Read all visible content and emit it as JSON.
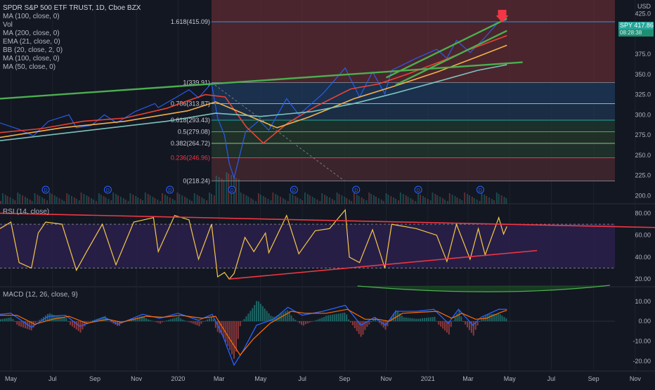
{
  "header": {
    "symbol_line": "SPDR S&P 500 ETF TRUST, 1D, Cboe BZX",
    "indicators": [
      "MA (100, close, 0)",
      "Vol",
      "MA (200, close, 0)",
      "EMA (21, close, 0)",
      "BB (20, close, 2, 0)",
      "MA (100, close, 0)",
      "MA (50, close, 0)"
    ],
    "currency": "USD"
  },
  "price_tag": {
    "symbol": "SPY",
    "value": "417.86",
    "countdown": "08:28:38"
  },
  "rsi_title": "RSI (14, close)",
  "macd_title": "MACD (12, 26, close, 9)",
  "colors": {
    "background": "#131722",
    "price_line": "#2962ff",
    "trendline_green": "#4caf50",
    "trendline_rsi": "#f23645",
    "rsi_line": "#f7c948",
    "macd_line": "#2962ff",
    "signal_line": "#ff6d00",
    "ma50": "#f44336",
    "ma100": "#ffb74d",
    "ma200": "#80cbc4",
    "fib_red": "#5d2b31",
    "fib_blue": "#1d3a5c",
    "fib_green": "#1f3a2d",
    "arrow": "#f23645"
  },
  "chart_data": [
    {
      "type": "line",
      "pane": "price",
      "title": "",
      "x_range": [
        "2019-04-15",
        "2021-11-30"
      ],
      "ylim": [
        190,
        442
      ],
      "y_ticks": [
        200,
        225,
        250,
        275,
        300,
        325,
        350,
        375,
        400,
        425
      ],
      "x_ticks": [
        {
          "label": "May",
          "date": "2019-05-01"
        },
        {
          "label": "Jul",
          "date": "2019-07-01"
        },
        {
          "label": "Sep",
          "date": "2019-09-01"
        },
        {
          "label": "Nov",
          "date": "2019-11-01"
        },
        {
          "label": "2020",
          "date": "2020-01-01"
        },
        {
          "label": "Mar",
          "date": "2020-03-01"
        },
        {
          "label": "May",
          "date": "2020-05-01"
        },
        {
          "label": "Jul",
          "date": "2020-07-01"
        },
        {
          "label": "Sep",
          "date": "2020-09-01"
        },
        {
          "label": "Nov",
          "date": "2020-11-01"
        },
        {
          "label": "2021",
          "date": "2021-01-01"
        },
        {
          "label": "Mar",
          "date": "2021-03-01"
        },
        {
          "label": "May",
          "date": "2021-05-01"
        },
        {
          "label": "Jul",
          "date": "2021-07-01"
        },
        {
          "label": "Sep",
          "date": "2021-09-01"
        },
        {
          "label": "Nov",
          "date": "2021-11-01"
        }
      ],
      "series": [
        {
          "key": "price",
          "points": [
            [
              "2019-04-15",
              290
            ],
            [
              "2019-05-13",
              282
            ],
            [
              "2019-06-03",
              274
            ],
            [
              "2019-06-25",
              292
            ],
            [
              "2019-07-25",
              300
            ],
            [
              "2019-08-05",
              284
            ],
            [
              "2019-08-27",
              287
            ],
            [
              "2019-09-15",
              300
            ],
            [
              "2019-10-03",
              290
            ],
            [
              "2019-10-30",
              304
            ],
            [
              "2019-11-28",
              314
            ],
            [
              "2019-12-03",
              309
            ],
            [
              "2019-12-30",
              322
            ],
            [
              "2020-01-17",
              331
            ],
            [
              "2020-01-31",
              321
            ],
            [
              "2020-02-19",
              339
            ],
            [
              "2020-02-28",
              296
            ],
            [
              "2020-03-09",
              275
            ],
            [
              "2020-03-16",
              240
            ],
            [
              "2020-03-23",
              222
            ],
            [
              "2020-04-09",
              279
            ],
            [
              "2020-04-29",
              293
            ],
            [
              "2020-05-13",
              281
            ],
            [
              "2020-06-08",
              320
            ],
            [
              "2020-06-26",
              300
            ],
            [
              "2020-07-31",
              326
            ],
            [
              "2020-09-02",
              358
            ],
            [
              "2020-09-23",
              322
            ],
            [
              "2020-10-12",
              353
            ],
            [
              "2020-10-30",
              326
            ],
            [
              "2020-11-09",
              355
            ],
            [
              "2020-12-15",
              370
            ],
            [
              "2021-01-14",
              381
            ],
            [
              "2021-01-29",
              370
            ],
            [
              "2021-02-12",
              392
            ],
            [
              "2021-03-04",
              377
            ],
            [
              "2021-03-26",
              396
            ],
            [
              "2021-04-15",
              415
            ],
            [
              "2021-04-26",
              417
            ]
          ]
        },
        {
          "key": "ma50",
          "points": [
            [
              "2019-04-15",
              278
            ],
            [
              "2019-06-15",
              283
            ],
            [
              "2019-08-15",
              292
            ],
            [
              "2019-10-15",
              296
            ],
            [
              "2019-12-15",
              308
            ],
            [
              "2020-02-10",
              325
            ],
            [
              "2020-03-10",
              322
            ],
            [
              "2020-04-10",
              285
            ],
            [
              "2020-05-05",
              265
            ],
            [
              "2020-06-10",
              290
            ],
            [
              "2020-07-20",
              310
            ],
            [
              "2020-09-10",
              332
            ],
            [
              "2020-10-20",
              338
            ],
            [
              "2020-12-01",
              350
            ],
            [
              "2021-01-20",
              366
            ],
            [
              "2021-03-01",
              380
            ],
            [
              "2021-04-27",
              398
            ]
          ]
        },
        {
          "key": "ma100",
          "points": [
            [
              "2019-04-15",
              272
            ],
            [
              "2019-07-15",
              284
            ],
            [
              "2019-10-15",
              292
            ],
            [
              "2020-01-15",
              305
            ],
            [
              "2020-02-25",
              316
            ],
            [
              "2020-04-10",
              300
            ],
            [
              "2020-05-25",
              284
            ],
            [
              "2020-07-10",
              297
            ],
            [
              "2020-09-15",
              320
            ],
            [
              "2020-11-15",
              336
            ],
            [
              "2021-01-15",
              353
            ],
            [
              "2021-03-15",
              372
            ],
            [
              "2021-04-27",
              386
            ]
          ]
        },
        {
          "key": "ma200",
          "points": [
            [
              "2019-04-15",
              268
            ],
            [
              "2019-08-15",
              280
            ],
            [
              "2019-12-15",
              292
            ],
            [
              "2020-02-25",
              302
            ],
            [
              "2020-05-01",
              298
            ],
            [
              "2020-07-15",
              304
            ],
            [
              "2020-09-15",
              314
            ],
            [
              "2020-11-15",
              327
            ],
            [
              "2021-01-15",
              341
            ],
            [
              "2021-03-15",
              355
            ],
            [
              "2021-04-27",
              362
            ]
          ]
        }
      ],
      "fib_levels": [
        {
          "label": "1.618(415.09)",
          "ratio": 1.618,
          "value": 415.09
        },
        {
          "label": "1(339.91)",
          "ratio": 1,
          "value": 339.91
        },
        {
          "label": "0.786(313.87)",
          "ratio": 0.786,
          "value": 313.87
        },
        {
          "label": "0.618(293.43)",
          "ratio": 0.618,
          "value": 293.43
        },
        {
          "label": "0.5(279.08)",
          "ratio": 0.5,
          "value": 279.08
        },
        {
          "label": "0.382(264.72)",
          "ratio": 0.382,
          "value": 264.72
        },
        {
          "label": "0.236(246.96)",
          "ratio": 0.236,
          "value": 246.96
        },
        {
          "label": "0(218.24)",
          "ratio": 0,
          "value": 218.24
        }
      ],
      "fib_start_date": "2020-02-19",
      "trendlines": [
        {
          "color": "green",
          "from": [
            "2019-04-15",
            320
          ],
          "to": [
            "2021-05-20",
            365
          ]
        },
        {
          "color": "green",
          "from": [
            "2020-11-01",
            346
          ],
          "to": [
            "2021-04-27",
            419
          ]
        },
        {
          "color": "green",
          "from": [
            "2020-11-15",
            337
          ],
          "to": [
            "2021-04-27",
            404
          ]
        }
      ],
      "dividend_marks": [
        "2019-03-22",
        "2019-06-21",
        "2019-09-20",
        "2019-12-20",
        "2020-03-20",
        "2020-06-19",
        "2020-09-18",
        "2020-12-18",
        "2021-03-19"
      ],
      "dividend_symbol": "D"
    },
    {
      "type": "line",
      "pane": "rsi",
      "title": "RSI (14, close)",
      "ylim": [
        13,
        88
      ],
      "y_ticks": [
        20.0,
        40.0,
        60.0,
        80.0
      ],
      "bands": [
        30,
        70
      ],
      "points": [
        [
          "2019-04-15",
          66
        ],
        [
          "2019-05-01",
          72
        ],
        [
          "2019-05-13",
          35
        ],
        [
          "2019-05-31",
          30
        ],
        [
          "2019-06-10",
          62
        ],
        [
          "2019-06-21",
          72
        ],
        [
          "2019-07-15",
          70
        ],
        [
          "2019-08-05",
          28
        ],
        [
          "2019-08-20",
          45
        ],
        [
          "2019-09-12",
          70
        ],
        [
          "2019-10-02",
          33
        ],
        [
          "2019-10-28",
          72
        ],
        [
          "2019-11-26",
          76
        ],
        [
          "2019-12-03",
          45
        ],
        [
          "2019-12-27",
          78
        ],
        [
          "2020-01-17",
          74
        ],
        [
          "2020-01-31",
          38
        ],
        [
          "2020-02-19",
          70
        ],
        [
          "2020-02-28",
          22
        ],
        [
          "2020-03-09",
          26
        ],
        [
          "2020-03-16",
          20
        ],
        [
          "2020-03-23",
          25
        ],
        [
          "2020-04-08",
          58
        ],
        [
          "2020-04-21",
          45
        ],
        [
          "2020-05-08",
          62
        ],
        [
          "2020-05-13",
          44
        ],
        [
          "2020-06-08",
          78
        ],
        [
          "2020-06-26",
          43
        ],
        [
          "2020-07-20",
          64
        ],
        [
          "2020-08-10",
          66
        ],
        [
          "2020-09-02",
          83
        ],
        [
          "2020-09-08",
          40
        ],
        [
          "2020-09-23",
          35
        ],
        [
          "2020-10-12",
          65
        ],
        [
          "2020-10-30",
          30
        ],
        [
          "2020-11-09",
          70
        ],
        [
          "2020-12-15",
          66
        ],
        [
          "2021-01-14",
          60
        ],
        [
          "2021-01-29",
          36
        ],
        [
          "2021-02-12",
          70
        ],
        [
          "2021-03-04",
          38
        ],
        [
          "2021-03-16",
          66
        ],
        [
          "2021-03-26",
          42
        ],
        [
          "2021-04-15",
          76
        ],
        [
          "2021-04-22",
          61
        ],
        [
          "2021-04-27",
          68
        ]
      ],
      "trendlines": [
        {
          "from": [
            "2019-04-15",
            80
          ],
          "to": [
            "2021-11-30",
            67
          ]
        },
        {
          "from": [
            "2020-03-16",
            20
          ],
          "to": [
            "2021-06-10",
            46
          ]
        }
      ]
    },
    {
      "type": "line",
      "pane": "macd",
      "title": "MACD (12, 26, close, 9)",
      "ylim": [
        -25,
        17
      ],
      "y_ticks": [
        10.0,
        0.0,
        -10.0,
        -20.0
      ],
      "series": [
        {
          "key": "macd",
          "points": [
            [
              "2019-04-15",
              3.5
            ],
            [
              "2019-05-01",
              4
            ],
            [
              "2019-05-31",
              -3
            ],
            [
              "2019-06-25",
              2.5
            ],
            [
              "2019-07-20",
              3
            ],
            [
              "2019-08-10",
              -2.5
            ],
            [
              "2019-09-15",
              2
            ],
            [
              "2019-10-05",
              -1.5
            ],
            [
              "2019-11-10",
              3.5
            ],
            [
              "2019-12-05",
              1.5
            ],
            [
              "2020-01-01",
              4
            ],
            [
              "2020-01-31",
              0.5
            ],
            [
              "2020-02-20",
              3.5
            ],
            [
              "2020-03-05",
              -6
            ],
            [
              "2020-03-23",
              -22
            ],
            [
              "2020-04-05",
              -15
            ],
            [
              "2020-04-25",
              -2
            ],
            [
              "2020-05-20",
              1
            ],
            [
              "2020-06-10",
              7
            ],
            [
              "2020-07-01",
              3
            ],
            [
              "2020-07-31",
              5
            ],
            [
              "2020-09-02",
              8
            ],
            [
              "2020-09-25",
              -2
            ],
            [
              "2020-10-15",
              2
            ],
            [
              "2020-10-31",
              -2
            ],
            [
              "2020-11-15",
              5
            ],
            [
              "2020-12-15",
              5
            ],
            [
              "2021-01-10",
              6
            ],
            [
              "2021-01-31",
              -1
            ],
            [
              "2021-02-15",
              6
            ],
            [
              "2021-03-08",
              -2
            ],
            [
              "2021-03-20",
              2
            ],
            [
              "2021-04-15",
              6
            ],
            [
              "2021-04-27",
              6
            ]
          ]
        },
        {
          "key": "signal",
          "points": [
            [
              "2019-04-15",
              3
            ],
            [
              "2019-05-10",
              3
            ],
            [
              "2019-06-05",
              -1.5
            ],
            [
              "2019-07-01",
              1
            ],
            [
              "2019-07-25",
              2.5
            ],
            [
              "2019-08-20",
              -1
            ],
            [
              "2019-09-20",
              1
            ],
            [
              "2019-10-10",
              -0.5
            ],
            [
              "2019-11-15",
              2.5
            ],
            [
              "2019-12-10",
              2
            ],
            [
              "2020-01-05",
              3
            ],
            [
              "2020-02-05",
              1.5
            ],
            [
              "2020-02-25",
              2.5
            ],
            [
              "2020-03-15",
              -8
            ],
            [
              "2020-04-01",
              -17
            ],
            [
              "2020-04-20",
              -9
            ],
            [
              "2020-05-15",
              -1
            ],
            [
              "2020-06-15",
              5
            ],
            [
              "2020-07-05",
              4
            ],
            [
              "2020-08-05",
              4
            ],
            [
              "2020-09-05",
              6
            ],
            [
              "2020-10-01",
              1
            ],
            [
              "2020-10-20",
              1
            ],
            [
              "2020-11-05",
              0
            ],
            [
              "2020-11-25",
              4
            ],
            [
              "2020-12-20",
              4.5
            ],
            [
              "2021-01-15",
              5
            ],
            [
              "2021-02-05",
              1.5
            ],
            [
              "2021-02-20",
              4
            ],
            [
              "2021-03-12",
              1
            ],
            [
              "2021-03-28",
              1.5
            ],
            [
              "2021-04-18",
              4.5
            ],
            [
              "2021-04-27",
              5.5
            ]
          ]
        }
      ]
    }
  ]
}
